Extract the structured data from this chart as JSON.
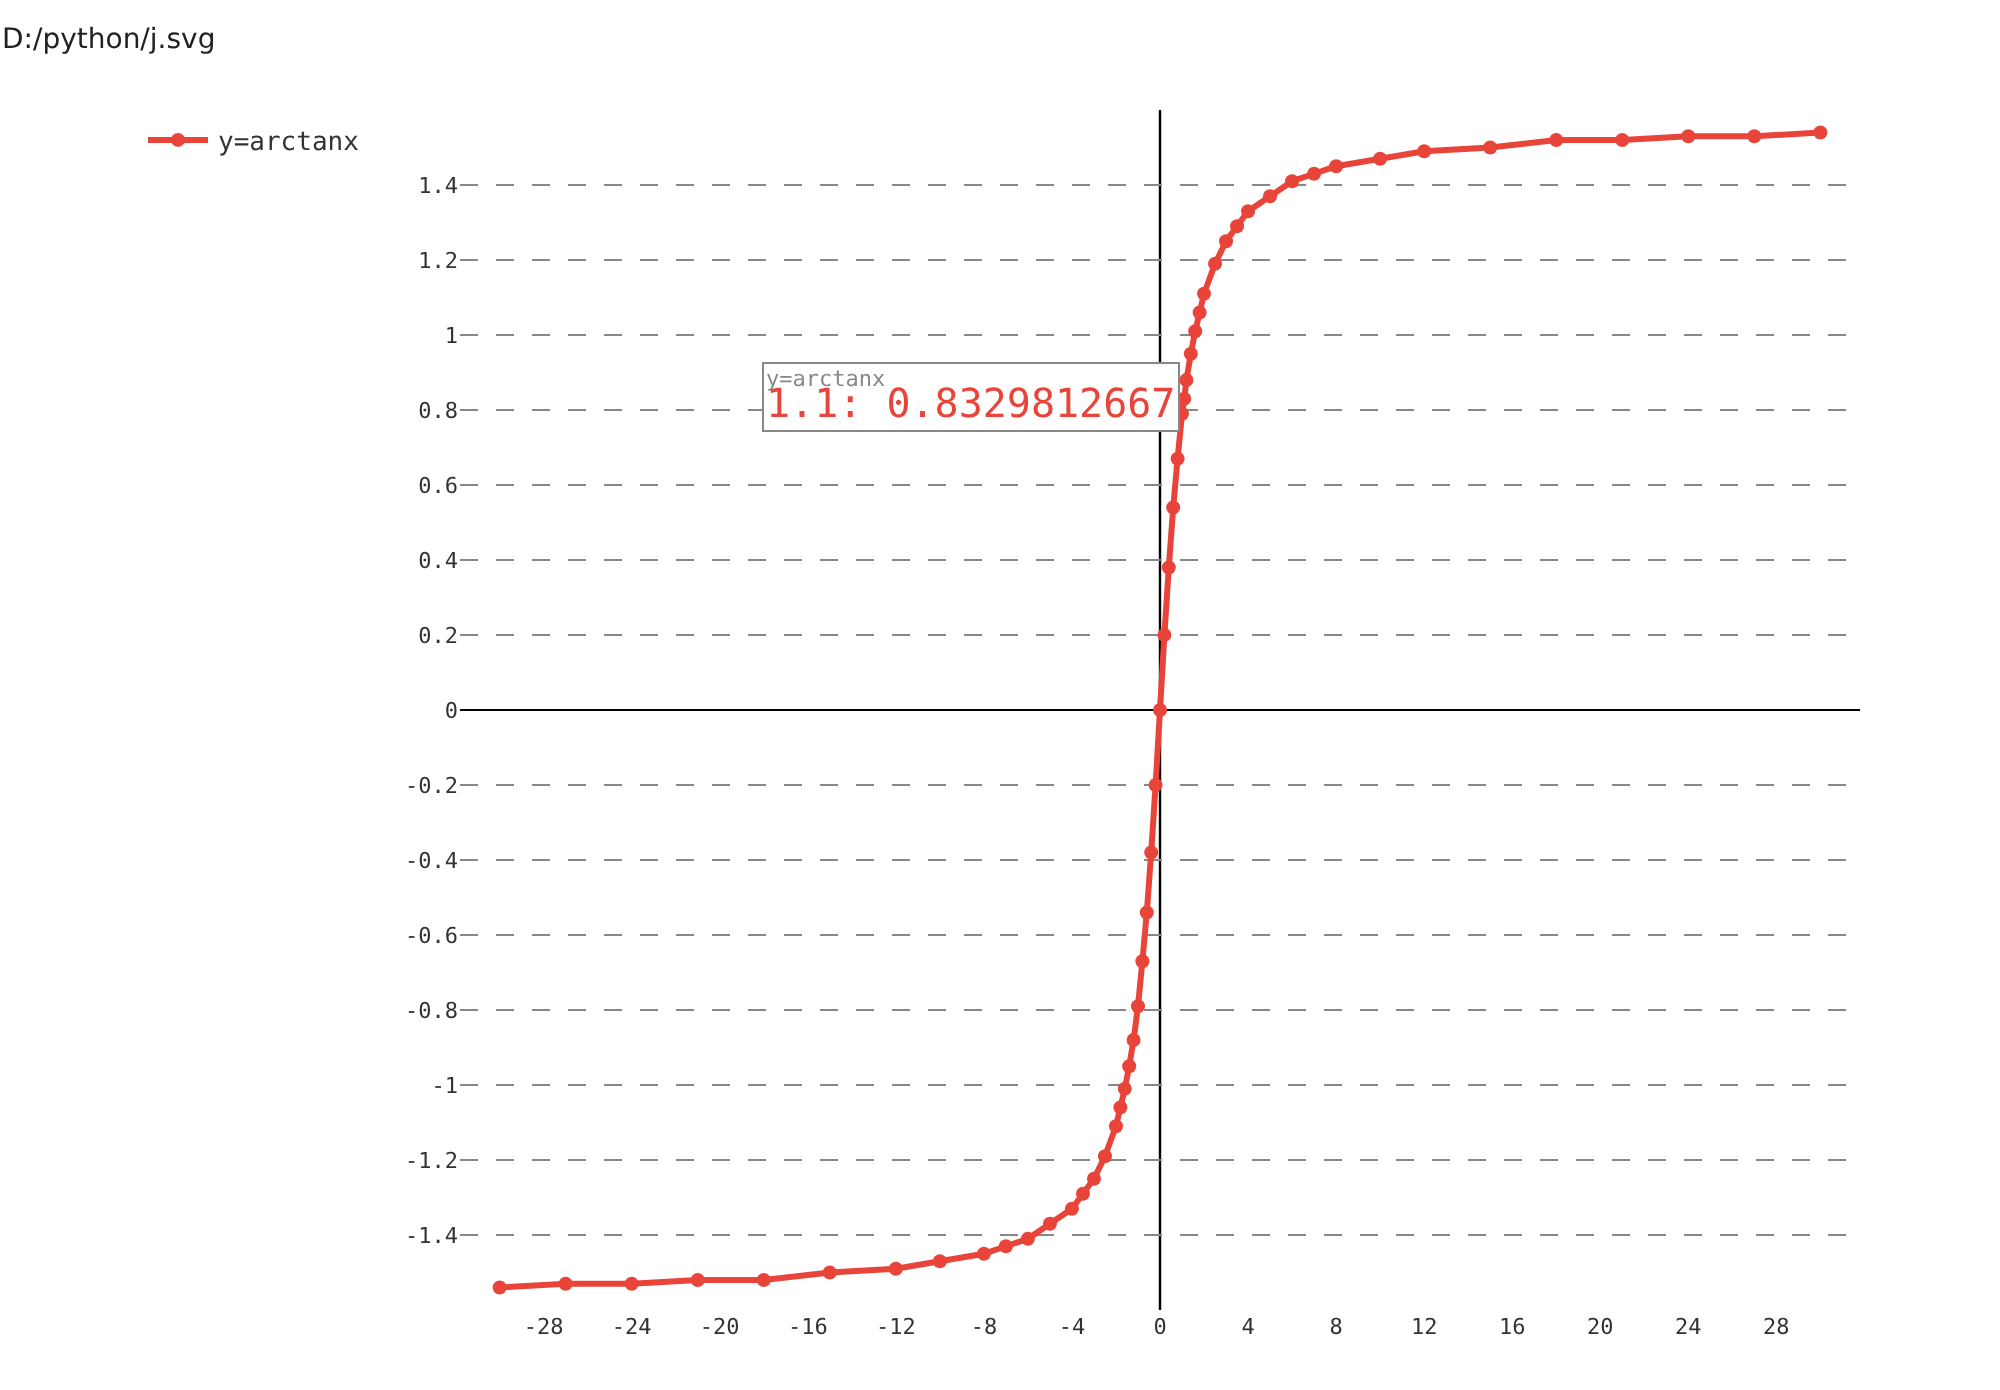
{
  "chart_data": {
    "type": "line",
    "x": [
      -30,
      -27,
      -24,
      -21,
      -18,
      -15,
      -12,
      -10,
      -8,
      -7,
      -6,
      -5,
      -4,
      -3.5,
      -3,
      -2.5,
      -2,
      -1.8,
      -1.6,
      -1.4,
      -1.2,
      -1,
      -0.8,
      -0.6,
      -0.4,
      -0.2,
      0,
      0.2,
      0.4,
      0.6,
      0.8,
      1,
      1.1,
      1.2,
      1.4,
      1.6,
      1.8,
      2,
      2.5,
      3,
      3.5,
      4,
      5,
      6,
      7,
      8,
      10,
      12,
      15,
      18,
      21,
      24,
      27,
      30
    ],
    "series": [
      {
        "name": "y=arctanx",
        "color": "#e8443a",
        "values": [
          -1.54,
          -1.53,
          -1.53,
          -1.52,
          -1.52,
          -1.5,
          -1.49,
          -1.47,
          -1.45,
          -1.43,
          -1.41,
          -1.37,
          -1.33,
          -1.29,
          -1.25,
          -1.19,
          -1.11,
          -1.06,
          -1.01,
          -0.95,
          -0.88,
          -0.79,
          -0.67,
          -0.54,
          -0.38,
          -0.2,
          0,
          0.2,
          0.38,
          0.54,
          0.67,
          0.79,
          0.83,
          0.88,
          0.95,
          1.01,
          1.06,
          1.11,
          1.19,
          1.25,
          1.29,
          1.33,
          1.37,
          1.41,
          1.43,
          1.45,
          1.47,
          1.49,
          1.5,
          1.52,
          1.52,
          1.53,
          1.53,
          1.54
        ]
      }
    ],
    "xlim": [
      -31.8,
      31.8
    ],
    "xticks": [
      -28,
      -24,
      -20,
      -16,
      -12,
      -8,
      -4,
      0,
      4,
      8,
      12,
      16,
      20,
      24,
      28
    ],
    "ylim": [
      -1.6,
      1.6
    ],
    "yticks": [
      -1.4,
      -1.2,
      -1,
      -0.8,
      -0.6,
      -0.4,
      -0.2,
      0,
      0.2,
      0.4,
      0.6,
      0.8,
      1,
      1.2,
      1.4
    ],
    "grid": "y",
    "ref_lines": [
      {
        "axis": "x",
        "value": 0,
        "color": "#000000",
        "line_style": "solid"
      }
    ],
    "legend": "top left",
    "marker": "circle",
    "line_style": "solid",
    "annotations": [
      "D:/python/j.svg",
      {
        "text": "y=arctanx\n1.1: 0.8329812667",
        "x": 1.1,
        "y": 0.8329812667
      }
    ]
  }
}
